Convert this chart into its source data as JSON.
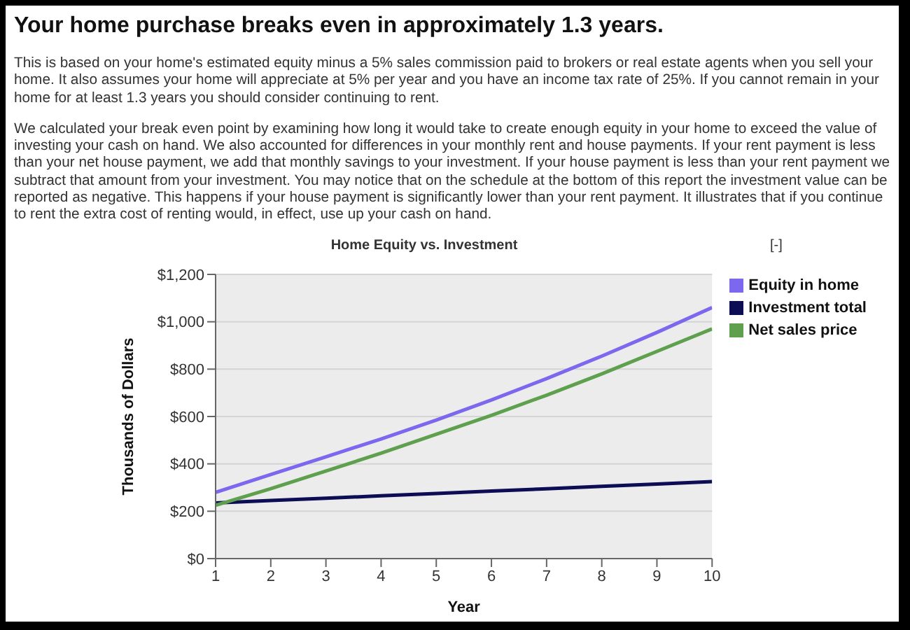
{
  "chart_data": {
    "type": "line",
    "title": "Your home purchase breaks even in approximately 1.3 years.",
    "subtitle": "Home Equity vs. Investment",
    "annotations": [
      "This is based on your home's estimated equity minus a 5% sales commission paid to brokers or real estate agents when you sell your home. It also assumes your home will appreciate at 5% per year and you have an income tax rate of 25%. If you cannot remain in your home for at least 1.3 years you should consider continuing to rent.",
      "We calculated your break even point by examining how long it would take to create enough equity in your home to exceed the value of investing your cash on hand. We also accounted for differences in your monthly rent and house payments. If your rent payment is less than your net house payment, we add that monthly savings to your investment. If your house payment is less than your rent payment we subtract that amount from your investment. You may notice that on the schedule at the bottom of this report the investment value can be reported as negative. This happens if your house payment is significantly lower than your rent payment. It illustrates that if you continue to rent the extra cost of renting would, in effect, use up your cash on hand.",
      "[-]"
    ],
    "xlabel": "Year",
    "ylabel": "Thousands of Dollars",
    "x": [
      1,
      2,
      3,
      4,
      5,
      6,
      7,
      8,
      9,
      10
    ],
    "series": [
      {
        "name": "Investment total",
        "color": "#0d0d55",
        "values": [
          235,
          245,
          255,
          265,
          275,
          285,
          295,
          305,
          315,
          325
        ]
      },
      {
        "name": "Equity in home",
        "color": "#7b68ee",
        "values": [
          280,
          355,
          430,
          505,
          585,
          670,
          760,
          855,
          955,
          1060
        ]
      },
      {
        "name": "Net sales price",
        "color": "#5ea04e",
        "values": [
          225,
          295,
          370,
          445,
          525,
          605,
          690,
          780,
          875,
          970
        ]
      }
    ],
    "xlim": [
      1,
      10
    ],
    "xticks": [
      1,
      2,
      3,
      4,
      5,
      6,
      7,
      8,
      9,
      10
    ],
    "ylim": [
      0,
      1200
    ],
    "yticks": [
      {
        "value": 0,
        "label": "$0"
      },
      {
        "value": 200,
        "label": "$200"
      },
      {
        "value": 400,
        "label": "$400"
      },
      {
        "value": 600,
        "label": "$600"
      },
      {
        "value": 800,
        "label": "$800"
      },
      {
        "value": 1000,
        "label": "$1,000"
      },
      {
        "value": 1200,
        "label": "$1,200"
      }
    ],
    "grid": "y",
    "legend": "top right",
    "marker": "none",
    "line_style": "solid"
  }
}
